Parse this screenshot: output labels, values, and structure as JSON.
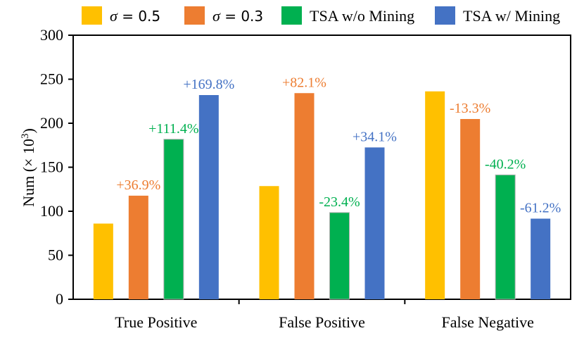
{
  "chart_data": {
    "type": "bar",
    "title": "",
    "xlabel": "",
    "ylabel": "Num (× 10",
    "ylabel_superscript": "3",
    "ylabel_suffix": ")",
    "ylim": [
      0,
      300
    ],
    "yticks": [
      0,
      50,
      100,
      150,
      200,
      250,
      300
    ],
    "grid": false,
    "legend_position": "top",
    "categories": [
      "True Positive",
      "False Positive",
      "False Negative"
    ],
    "series": [
      {
        "name": "σ = 0.5",
        "legend_symbol": "σ",
        "legend_rest": " = 0.5",
        "color": "#FFC000",
        "values": [
          86,
          128.6,
          236.2
        ],
        "labels": [
          "",
          "",
          ""
        ]
      },
      {
        "name": "σ = 0.3",
        "legend_symbol": "σ",
        "legend_rest": " = 0.3",
        "color": "#ED7D31",
        "values": [
          117.7,
          234.2,
          204.8
        ],
        "labels": [
          "+36.9%",
          "+82.1%",
          "-13.3%"
        ]
      },
      {
        "name": "TSA w/o Mining",
        "legend_symbol": "",
        "legend_rest": "TSA w/o Mining",
        "color": "#00B050",
        "values": [
          181.8,
          98.5,
          141.3
        ],
        "labels": [
          "+111.4%",
          "-23.4%",
          "-40.2%"
        ]
      },
      {
        "name": "TSA w/ Mining",
        "legend_symbol": "",
        "legend_rest": "TSA w/ Mining",
        "color": "#4472C4",
        "values": [
          232.0,
          172.5,
          91.6
        ],
        "labels": [
          "+169.8%",
          "+34.1%",
          "-61.2%"
        ]
      }
    ]
  }
}
